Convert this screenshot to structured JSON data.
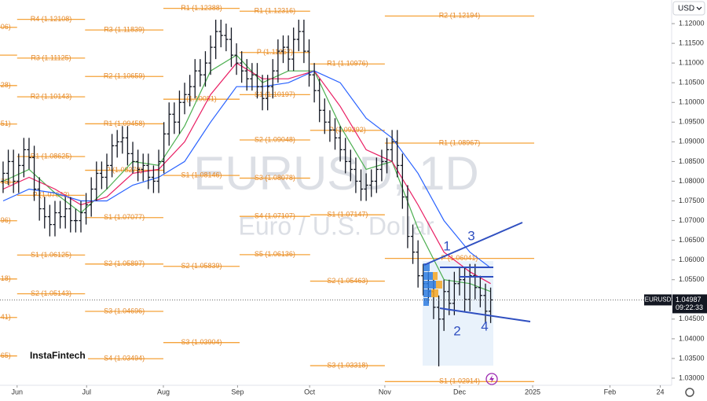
{
  "chart_data": {
    "type": "ohlc",
    "watermark_symbol": "EURUSD, 1D",
    "watermark_name": "Euro / U.S. Dollar",
    "currency": "USD",
    "brand": "InstaFintech",
    "annotations": [
      "1",
      "2",
      "3",
      "4"
    ],
    "last_price": {
      "symbol": "EURUSD",
      "value": 1.04987,
      "time": "09:22:33"
    },
    "xlim": [
      -0.6,
      128.9
    ],
    "xticks": [
      {
        "value": 2.7,
        "label": "Jun"
      },
      {
        "value": 16.1,
        "label": "Jul"
      },
      {
        "value": 30.9,
        "label": "Aug"
      },
      {
        "value": 45.2,
        "label": "Sep"
      },
      {
        "value": 59.1,
        "label": "Oct"
      },
      {
        "value": 73.6,
        "label": "Nov"
      },
      {
        "value": 88.0,
        "label": "Dec"
      },
      {
        "value": 102.1,
        "label": "2025"
      },
      {
        "value": 117.0,
        "label": "Feb"
      },
      {
        "value": 126.7,
        "label": "24"
      }
    ],
    "ylim": [
      1.0282,
      1.126
    ],
    "yticks": [
      {
        "value": 1.03,
        "label": "1.03000"
      },
      {
        "value": 1.035,
        "label": "1.03500"
      },
      {
        "value": 1.04,
        "label": "1.04000"
      },
      {
        "value": 1.045,
        "label": "1.04500"
      },
      {
        "value": 1.05,
        "label": "1.05000"
      },
      {
        "value": 1.055,
        "label": "1.05500"
      },
      {
        "value": 1.06,
        "label": "1.06000"
      },
      {
        "value": 1.065,
        "label": "1.06500"
      },
      {
        "value": 1.07,
        "label": "1.07000"
      },
      {
        "value": 1.075,
        "label": "1.07500"
      },
      {
        "value": 1.08,
        "label": "1.08000"
      },
      {
        "value": 1.085,
        "label": "1.08500"
      },
      {
        "value": 1.09,
        "label": "1.09000"
      },
      {
        "value": 1.095,
        "label": "1.09500"
      },
      {
        "value": 1.1,
        "label": "1.10000"
      },
      {
        "value": 1.105,
        "label": "1.10500"
      },
      {
        "value": 1.11,
        "label": "1.11000"
      },
      {
        "value": 1.115,
        "label": "1.11500"
      },
      {
        "value": 1.12,
        "label": "1.12000"
      }
    ],
    "color": "#131722",
    "x": [
      0,
      1,
      2,
      3,
      4,
      5,
      6,
      7,
      8,
      9,
      10,
      11,
      12,
      13,
      14,
      15,
      16,
      17,
      18,
      19,
      20,
      21,
      22,
      23,
      24,
      25,
      26,
      27,
      28,
      29,
      30,
      31,
      32,
      33,
      34,
      35,
      36,
      37,
      38,
      39,
      40,
      41,
      42,
      43,
      44,
      45,
      46,
      47,
      48,
      49,
      50,
      51,
      52,
      53,
      54,
      55,
      56,
      57,
      58,
      59,
      60,
      61,
      62,
      63,
      64,
      65,
      66,
      67,
      68,
      69,
      70,
      71,
      72,
      73,
      74,
      75,
      76,
      77,
      78,
      79,
      80,
      81,
      82,
      83,
      84,
      85,
      86,
      87,
      88,
      89,
      90,
      91,
      92,
      93,
      94
    ],
    "open": [
      1.08,
      1.082,
      1.085,
      1.08,
      1.084,
      1.088,
      1.086,
      1.078,
      1.073,
      1.071,
      1.069,
      1.072,
      1.071,
      1.073,
      1.07,
      1.07,
      1.072,
      1.074,
      1.078,
      1.082,
      1.081,
      1.084,
      1.089,
      1.09,
      1.091,
      1.087,
      1.085,
      1.083,
      1.084,
      1.081,
      1.08,
      1.085,
      1.092,
      1.097,
      1.095,
      1.1,
      1.102,
      1.104,
      1.108,
      1.107,
      1.11,
      1.114,
      1.118,
      1.117,
      1.116,
      1.112,
      1.11,
      1.108,
      1.106,
      1.107,
      1.104,
      1.101,
      1.104,
      1.108,
      1.113,
      1.114,
      1.111,
      1.116,
      1.118,
      1.113,
      1.107,
      1.103,
      1.098,
      1.095,
      1.093,
      1.091,
      1.088,
      1.085,
      1.083,
      1.08,
      1.078,
      1.079,
      1.08,
      1.083,
      1.085,
      1.088,
      1.09,
      1.084,
      1.076,
      1.066,
      1.062,
      1.056,
      1.054,
      1.052,
      1.048,
      1.045,
      1.052,
      1.049,
      1.054,
      1.055,
      1.05,
      1.056,
      1.053,
      1.051,
      1.047
    ],
    "high": [
      1.085,
      1.088,
      1.088,
      1.087,
      1.091,
      1.091,
      1.089,
      1.081,
      1.076,
      1.074,
      1.075,
      1.075,
      1.076,
      1.076,
      1.073,
      1.075,
      1.077,
      1.081,
      1.085,
      1.085,
      1.087,
      1.092,
      1.093,
      1.094,
      1.094,
      1.09,
      1.088,
      1.087,
      1.087,
      1.084,
      1.088,
      1.095,
      1.1,
      1.1,
      1.103,
      1.105,
      1.107,
      1.111,
      1.111,
      1.113,
      1.117,
      1.121,
      1.121,
      1.12,
      1.119,
      1.115,
      1.113,
      1.111,
      1.11,
      1.11,
      1.107,
      1.107,
      1.111,
      1.116,
      1.117,
      1.117,
      1.119,
      1.121,
      1.121,
      1.116,
      1.11,
      1.106,
      1.101,
      1.098,
      1.096,
      1.094,
      1.091,
      1.088,
      1.086,
      1.083,
      1.082,
      1.083,
      1.086,
      1.088,
      1.091,
      1.093,
      1.093,
      1.087,
      1.079,
      1.069,
      1.065,
      1.059,
      1.057,
      1.055,
      1.051,
      1.055,
      1.055,
      1.057,
      1.058,
      1.058,
      1.059,
      1.059,
      1.056,
      1.054,
      1.053
    ],
    "low": [
      1.077,
      1.079,
      1.077,
      1.077,
      1.081,
      1.083,
      1.075,
      1.07,
      1.068,
      1.066,
      1.066,
      1.068,
      1.068,
      1.067,
      1.067,
      1.067,
      1.069,
      1.071,
      1.075,
      1.078,
      1.078,
      1.081,
      1.086,
      1.087,
      1.084,
      1.082,
      1.08,
      1.08,
      1.078,
      1.077,
      1.077,
      1.082,
      1.089,
      1.092,
      1.092,
      1.097,
      1.099,
      1.101,
      1.104,
      1.104,
      1.107,
      1.111,
      1.114,
      1.113,
      1.109,
      1.107,
      1.105,
      1.103,
      1.103,
      1.101,
      1.098,
      1.098,
      1.101,
      1.105,
      1.11,
      1.108,
      1.108,
      1.113,
      1.11,
      1.104,
      1.1,
      1.095,
      1.092,
      1.09,
      1.088,
      1.085,
      1.082,
      1.08,
      1.077,
      1.075,
      1.075,
      1.076,
      1.077,
      1.08,
      1.082,
      1.085,
      1.081,
      1.073,
      1.063,
      1.059,
      1.053,
      1.051,
      1.049,
      1.045,
      1.033,
      1.042,
      1.046,
      1.046,
      1.051,
      1.047,
      1.047,
      1.05,
      1.048,
      1.044,
      1.044
    ],
    "close": [
      1.082,
      1.085,
      1.08,
      1.084,
      1.088,
      1.086,
      1.078,
      1.073,
      1.071,
      1.069,
      1.072,
      1.071,
      1.073,
      1.07,
      1.07,
      1.072,
      1.074,
      1.078,
      1.082,
      1.081,
      1.084,
      1.089,
      1.09,
      1.091,
      1.087,
      1.085,
      1.083,
      1.084,
      1.081,
      1.08,
      1.085,
      1.092,
      1.097,
      1.095,
      1.1,
      1.102,
      1.104,
      1.108,
      1.107,
      1.11,
      1.114,
      1.118,
      1.117,
      1.116,
      1.112,
      1.11,
      1.108,
      1.106,
      1.107,
      1.104,
      1.101,
      1.104,
      1.108,
      1.113,
      1.114,
      1.111,
      1.116,
      1.118,
      1.113,
      1.107,
      1.103,
      1.098,
      1.095,
      1.093,
      1.091,
      1.088,
      1.085,
      1.083,
      1.08,
      1.078,
      1.079,
      1.08,
      1.083,
      1.085,
      1.088,
      1.09,
      1.084,
      1.076,
      1.066,
      1.062,
      1.056,
      1.054,
      1.052,
      1.048,
      1.045,
      1.052,
      1.049,
      1.054,
      1.055,
      1.05,
      1.056,
      1.053,
      1.051,
      1.047,
      1.04987
    ],
    "moving_averages": [
      {
        "color": "#4caf50",
        "x": [
          0,
          5,
          10,
          15,
          20,
          25,
          30,
          35,
          40,
          45,
          50,
          55,
          60,
          65,
          70,
          75,
          80,
          85,
          90,
          94
        ],
        "values": [
          1.08,
          1.083,
          1.077,
          1.072,
          1.078,
          1.085,
          1.084,
          1.094,
          1.108,
          1.112,
          1.105,
          1.108,
          1.108,
          1.094,
          1.083,
          1.085,
          1.068,
          1.055,
          1.054,
          1.052
        ]
      },
      {
        "color": "#e91e63",
        "x": [
          0,
          5,
          10,
          15,
          20,
          25,
          30,
          35,
          40,
          45,
          50,
          55,
          60,
          65,
          70,
          75,
          80,
          85,
          90,
          94
        ],
        "values": [
          1.078,
          1.081,
          1.078,
          1.074,
          1.076,
          1.082,
          1.083,
          1.09,
          1.102,
          1.11,
          1.106,
          1.106,
          1.108,
          1.099,
          1.088,
          1.085,
          1.074,
          1.062,
          1.057,
          1.054
        ]
      },
      {
        "color": "#2962ff",
        "x": [
          0,
          5,
          10,
          15,
          20,
          25,
          30,
          35,
          40,
          45,
          50,
          55,
          60,
          65,
          70,
          75,
          80,
          85,
          90,
          94
        ],
        "values": [
          1.075,
          1.078,
          1.077,
          1.075,
          1.075,
          1.079,
          1.081,
          1.085,
          1.095,
          1.104,
          1.104,
          1.105,
          1.108,
          1.105,
          1.096,
          1.091,
          1.082,
          1.07,
          1.062,
          1.058
        ]
      }
    ],
    "pivot_color": "#f5a33a",
    "pivots": [
      {
        "x": [
          -0.6,
          2.7
        ],
        "levels": [
          {
            "label": "06)",
            "value": 1.11906
          },
          {
            "value": 1.112
          },
          {
            "label": "28)",
            "value": 1.10428
          },
          {
            "label": "51)",
            "value": 1.09451
          },
          {
            "label": "75)",
            "value": 1.07975
          },
          {
            "label": "96)",
            "value": 1.06996
          },
          {
            "label": "18)",
            "value": 1.05518
          },
          {
            "label": "41)",
            "value": 1.04541
          },
          {
            "label": "65)",
            "value": 1.03565
          }
        ]
      },
      {
        "x": [
          2.7,
          15.8
        ],
        "levels": [
          {
            "label": "R4 (1.12108)",
            "value": 1.12108
          },
          {
            "label": "R3 (1.11125)",
            "value": 1.11125
          },
          {
            "label": "R2 (1.10143)",
            "value": 1.10143
          },
          {
            "label": "R1 (1.08625)",
            "value": 1.08625
          },
          {
            "label": "P (1.07643)",
            "value": 1.07643
          },
          {
            "label": "S1 (1.06125)",
            "value": 1.06125
          },
          {
            "label": "S2 (1.05143)",
            "value": 1.05143
          }
        ]
      },
      {
        "x": [
          15.8,
          30.9
        ],
        "levels": [
          {
            "label": "R3 (1.11839)",
            "value": 1.11839
          },
          {
            "label": "R2 (1.10659)",
            "value": 1.10659
          },
          {
            "label": "R1 (1.09458)",
            "value": 1.09458
          },
          {
            "label": "P (1.08278)",
            "value": 1.08278
          },
          {
            "label": "S1 (1.07077)",
            "value": 1.07077
          },
          {
            "label": "S2 (1.05897)",
            "value": 1.05897
          },
          {
            "label": "S3 (1.04696)",
            "value": 1.04696
          },
          {
            "label": "S4 (1.03494)",
            "value": 1.03494
          }
        ]
      },
      {
        "x": [
          30.9,
          45.6
        ],
        "levels": [
          {
            "label": "R1 (1.12388)",
            "value": 1.12388
          },
          {
            "label": "(1.10081)",
            "value": 1.10081
          },
          {
            "label": "S1 (1.08146)",
            "value": 1.08146
          },
          {
            "label": "S2 (1.05839)",
            "value": 1.05839
          },
          {
            "label": "S3 (1.03904)",
            "value": 1.03904
          }
        ]
      },
      {
        "x": [
          45.6,
          59.2
        ],
        "levels": [
          {
            "label": "R1 (1.12316)",
            "value": 1.12316
          },
          {
            "label": "P (1.11267)",
            "value": 1.11267
          },
          {
            "label": "S1 (1.10197)",
            "value": 1.10197
          },
          {
            "label": "S2 (1.09048)",
            "value": 1.09048
          },
          {
            "label": "S3 (1.08078)",
            "value": 1.08078
          },
          {
            "label": "S4 (1.07107)",
            "value": 1.07107
          },
          {
            "label": "S5 (1.06136)",
            "value": 1.06136
          }
        ]
      },
      {
        "x": [
          59.2,
          73.6
        ],
        "levels": [
          {
            "label": "R1 (1.10976)",
            "value": 1.10976
          },
          {
            "label": "P (1.09292)",
            "value": 1.09292
          },
          {
            "label": "S1 (1.07147)",
            "value": 1.07147
          },
          {
            "label": "S2 (1.05463)",
            "value": 1.05463
          },
          {
            "label": "S3 (1.03318)",
            "value": 1.03318
          }
        ]
      },
      {
        "x": [
          73.6,
          102.4
        ],
        "levels": [
          {
            "label": "R2 (1.12194)",
            "value": 1.12194
          },
          {
            "label": "R1 (1.08967)",
            "value": 1.08967
          },
          {
            "label": "P (1.06041)",
            "value": 1.06041
          },
          {
            "label": "S1 (1.02914)",
            "value": 1.02914
          }
        ]
      }
    ]
  }
}
